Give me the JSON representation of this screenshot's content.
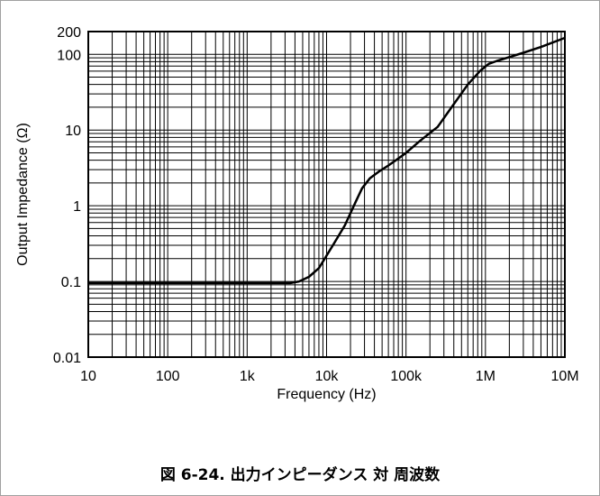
{
  "chart_data": {
    "type": "line",
    "title": "",
    "xlabel": "Frequency (Hz)",
    "ylabel": "Output Impedance (Ω)",
    "x_scale": "log",
    "y_scale": "log",
    "xlim": [
      10,
      10000000
    ],
    "ylim": [
      0.01,
      200
    ],
    "grid": true,
    "x_ticks": [
      {
        "value": 10,
        "label": "10"
      },
      {
        "value": 100,
        "label": "100"
      },
      {
        "value": 1000,
        "label": "1k"
      },
      {
        "value": 10000,
        "label": "10k"
      },
      {
        "value": 100000,
        "label": "100k"
      },
      {
        "value": 1000000,
        "label": "1M"
      },
      {
        "value": 10000000,
        "label": "10M"
      }
    ],
    "y_ticks": [
      {
        "value": 0.01,
        "label": "0.01"
      },
      {
        "value": 0.1,
        "label": "0.1"
      },
      {
        "value": 1,
        "label": "1"
      },
      {
        "value": 10,
        "label": "10"
      },
      {
        "value": 100,
        "label": "100"
      },
      {
        "value": 200,
        "label": "200"
      }
    ],
    "series": [
      {
        "x": [
          10,
          1000,
          3500,
          4500,
          6000,
          8000,
          12000,
          17000,
          23000,
          28000,
          35000,
          45000,
          60000,
          80000,
          100000,
          150000,
          250000,
          400000,
          600000,
          850000,
          1100000,
          1400000,
          2000000,
          3000000,
          5000000,
          10000000
        ],
        "y": [
          0.095,
          0.095,
          0.095,
          0.1,
          0.115,
          0.15,
          0.3,
          0.55,
          1.1,
          1.7,
          2.3,
          2.8,
          3.4,
          4.2,
          5.0,
          7.2,
          11,
          22,
          40,
          60,
          75,
          82,
          92,
          105,
          125,
          165
        ]
      }
    ]
  },
  "caption": "図 6-24. 出力インピーダンス 対 周波数"
}
